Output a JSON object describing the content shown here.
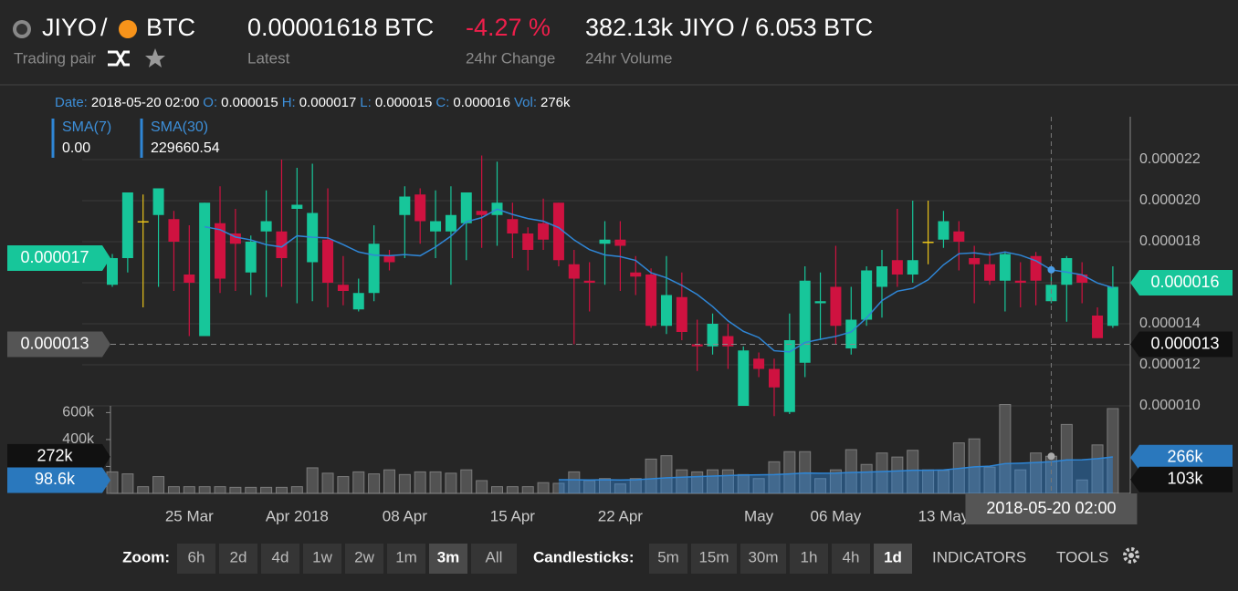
{
  "header": {
    "base": "JIYO",
    "sep": "/",
    "quote": "BTC",
    "pair_label": "Trading pair",
    "last": "0.00001618 BTC",
    "last_label": "Latest",
    "change": "-4.27 %",
    "change_label": "24hr Change",
    "volume": "382.13k JIYO / 6.053 BTC",
    "volume_label": "24hr Volume"
  },
  "info": [
    {
      "label": "Date:",
      "value": "2018-05-20 02:00"
    },
    {
      "label": "O:",
      "value": "0.000015"
    },
    {
      "label": "H:",
      "value": "0.000017"
    },
    {
      "label": "L:",
      "value": "0.000015"
    },
    {
      "label": "C:",
      "value": "0.000016"
    },
    {
      "label": "Vol:",
      "value": "276k"
    }
  ],
  "legend": [
    {
      "name": "SMA(7)",
      "value": "0.00"
    },
    {
      "name": "SMA(30)",
      "value": "229660.54"
    }
  ],
  "chart_data": {
    "type": "candlestick",
    "up_color": "#17c69a",
    "down_color": "#cf1240",
    "doji_color": "#e8c21a",
    "sma_color": "#2f86d6",
    "grid": true,
    "categories": [
      null,
      null,
      null,
      null,
      null,
      "25 Mar",
      null,
      null,
      null,
      null,
      null,
      null,
      "Apr 2018",
      null,
      null,
      null,
      null,
      null,
      null,
      "08 Apr",
      null,
      null,
      null,
      null,
      null,
      null,
      "15 Apr",
      null,
      null,
      null,
      null,
      null,
      null,
      "22 Apr",
      null,
      null,
      null,
      null,
      null,
      null,
      null,
      null,
      "May",
      null,
      null,
      null,
      null,
      "06 May",
      null,
      null,
      null,
      null,
      null,
      null,
      "13 May",
      null,
      null,
      null,
      null,
      null,
      null,
      null,
      null,
      null,
      null,
      null
    ],
    "open": [
      1.59e-05,
      1.72e-05,
      1.9e-05,
      1.93e-05,
      1.91e-05,
      1.64e-05,
      1.34e-05,
      1.89e-05,
      1.84e-05,
      1.65e-05,
      1.85e-05,
      1.85e-05,
      1.96e-05,
      1.7e-05,
      1.81e-05,
      1.59e-05,
      1.47e-05,
      1.55e-05,
      1.73e-05,
      1.93e-05,
      2.03e-05,
      1.85e-05,
      1.85e-05,
      1.89e-05,
      1.95e-05,
      1.93e-05,
      1.91e-05,
      1.84e-05,
      1.89e-05,
      1.99e-05,
      1.69e-05,
      1.61e-05,
      1.79e-05,
      1.81e-05,
      1.65e-05,
      1.64e-05,
      1.39e-05,
      1.53e-05,
      1.3e-05,
      1.29e-05,
      1.34e-05,
      1e-05,
      1.23e-05,
      1.18e-05,
      9.7e-06,
      1.21e-05,
      1.5e-05,
      1.58e-05,
      1.28e-05,
      1.42e-05,
      1.58e-05,
      1.71e-05,
      1.64e-05,
      1.8e-05,
      1.81e-05,
      1.85e-05,
      1.72e-05,
      1.69e-05,
      1.61e-05,
      1.61e-05,
      1.73e-05,
      1.51e-05,
      1.59e-05,
      1.64e-05,
      1.44e-05,
      1.39e-05
    ],
    "high": [
      1.74e-05,
      2.04e-05,
      2.03e-05,
      2.06e-05,
      1.95e-05,
      1.88e-05,
      1.99e-05,
      2.07e-05,
      1.96e-05,
      1.83e-05,
      2.05e-05,
      2.2e-05,
      2.16e-05,
      2.18e-05,
      2.06e-05,
      1.73e-05,
      1.62e-05,
      1.88e-05,
      1.76e-05,
      2.07e-05,
      2.06e-05,
      2.05e-05,
      2.07e-05,
      2.04e-05,
      2.22e-05,
      2.19e-05,
      1.99e-05,
      1.87e-05,
      2.01e-05,
      1.99e-05,
      1.76e-05,
      1.7e-05,
      1.9e-05,
      1.9e-05,
      1.73e-05,
      1.67e-05,
      1.73e-05,
      1.65e-05,
      1.42e-05,
      1.45e-05,
      1.4e-05,
      1.29e-05,
      1.26e-05,
      1.23e-05,
      1.45e-05,
      1.68e-05,
      1.65e-05,
      1.78e-05,
      1.58e-05,
      1.68e-05,
      1.76e-05,
      1.96e-05,
      2e-05,
      2e-05,
      1.95e-05,
      1.9e-05,
      1.78e-05,
      1.75e-05,
      1.75e-05,
      1.7e-05,
      1.75e-05,
      1.68e-05,
      1.73e-05,
      1.7e-05,
      1.48e-05,
      1.68e-05
    ],
    "low": [
      1.58e-05,
      1.65e-05,
      1.48e-05,
      1.58e-05,
      1.56e-05,
      1.34e-05,
      1.34e-05,
      1.55e-05,
      1.56e-05,
      1.54e-05,
      1.53e-05,
      1.58e-05,
      1.5e-05,
      1.51e-05,
      1.48e-05,
      1.49e-05,
      1.46e-05,
      1.51e-05,
      1.66e-05,
      1.72e-05,
      1.79e-05,
      1.72e-05,
      1.59e-05,
      1.71e-05,
      1.77e-05,
      1.78e-05,
      1.72e-05,
      1.66e-05,
      1.76e-05,
      1.68e-05,
      1.3e-05,
      1.46e-05,
      1.59e-05,
      1.56e-05,
      1.54e-05,
      1.38e-05,
      1.35e-05,
      1.32e-05,
      1.17e-05,
      1.25e-05,
      1.18e-05,
      1e-05,
      1.14e-05,
      9.5e-06,
      9.6e-06,
      1.14e-05,
      1.32e-05,
      1.3e-05,
      1.25e-05,
      1.39e-05,
      1.43e-05,
      1.58e-05,
      1.6e-05,
      1.69e-05,
      1.77e-05,
      1.66e-05,
      1.5e-05,
      1.59e-05,
      1.46e-05,
      1.48e-05,
      1.49e-05,
      1.5e-05,
      1.41e-05,
      1.5e-05,
      1.33e-05,
      1.38e-05
    ],
    "close": [
      1.72e-05,
      2.04e-05,
      1.9e-05,
      2.06e-05,
      1.8e-05,
      1.6e-05,
      1.99e-05,
      1.62e-05,
      1.79e-05,
      1.8e-05,
      1.9e-05,
      1.72e-05,
      1.98e-05,
      1.94e-05,
      1.6e-05,
      1.56e-05,
      1.55e-05,
      1.79e-05,
      1.7e-05,
      2.02e-05,
      1.9e-05,
      1.9e-05,
      1.93e-05,
      2.04e-05,
      1.93e-05,
      1.99e-05,
      1.84e-05,
      1.76e-05,
      1.81e-05,
      1.71e-05,
      1.62e-05,
      1.6e-05,
      1.81e-05,
      1.78e-05,
      1.63e-05,
      1.39e-05,
      1.54e-05,
      1.36e-05,
      1.29e-05,
      1.4e-05,
      1.29e-05,
      1.27e-05,
      1.18e-05,
      1.09e-05,
      1.32e-05,
      1.61e-05,
      1.51e-05,
      1.39e-05,
      1.42e-05,
      1.66e-05,
      1.68e-05,
      1.64e-05,
      1.71e-05,
      1.8e-05,
      1.9e-05,
      1.8e-05,
      1.69e-05,
      1.61e-05,
      1.74e-05,
      1.6e-05,
      1.61e-05,
      1.59e-05,
      1.72e-05,
      1.6e-05,
      1.33e-05,
      1.58e-05
    ],
    "volume": [
      160000,
      145000,
      50000,
      125000,
      50000,
      50000,
      50000,
      50000,
      45000,
      45000,
      45000,
      45000,
      50000,
      190000,
      150000,
      125000,
      160000,
      145000,
      175000,
      140000,
      160000,
      160000,
      150000,
      175000,
      95000,
      50000,
      50000,
      50000,
      80000,
      75000,
      160000,
      95000,
      110000,
      70000,
      110000,
      255000,
      280000,
      175000,
      160000,
      175000,
      175000,
      140000,
      110000,
      235000,
      310000,
      310000,
      110000,
      175000,
      325000,
      215000,
      300000,
      270000,
      320000,
      175000,
      170000,
      375000,
      405000,
      195000,
      660000,
      175000,
      300000,
      276000,
      512000,
      100000,
      360000,
      630000
    ],
    "ylim": [
      6e-06,
      2.4e-05
    ],
    "yticks": [
      {
        "value": 1e-05,
        "label": "0.000010"
      },
      {
        "value": 1.2e-05,
        "label": "0.000012"
      },
      {
        "value": 1.4e-05,
        "label": "0.000014"
      },
      {
        "value": 1.6e-05,
        "label": "0.000016"
      },
      {
        "value": 1.8e-05,
        "label": "0.000018"
      },
      {
        "value": 2e-05,
        "label": "0.000020"
      },
      {
        "value": 2.2e-05,
        "label": "0.000022"
      }
    ],
    "y2lim": [
      0,
      650000
    ],
    "y2ticks": [
      {
        "value": 200000,
        "label": "200k"
      },
      {
        "value": 400000,
        "label": "400k"
      },
      {
        "value": 600000,
        "label": "600k"
      }
    ],
    "price_tags": [
      {
        "side": "left",
        "value": 1.72e-05,
        "label": "0.000017",
        "color": "#17c69a"
      },
      {
        "side": "left",
        "value": 1.3e-05,
        "label": "0.000013",
        "color": "#555555"
      },
      {
        "side": "right",
        "value": 1.6e-05,
        "label": "0.000016",
        "color": "#17c69a"
      },
      {
        "side": "right",
        "value": 1.3e-05,
        "label": "0.000013",
        "color": "#111111"
      }
    ],
    "volume_tags": [
      {
        "side": "left",
        "value": 272000,
        "label": "272k",
        "color": "#111111"
      },
      {
        "side": "left",
        "value": 98600,
        "label": "98.6k",
        "color": "#2a78bd"
      },
      {
        "side": "right",
        "value": 266000,
        "label": "266k",
        "color": "#2a78bd"
      },
      {
        "side": "right",
        "value": 103000,
        "label": "103k",
        "color": "#111111"
      }
    ],
    "crosshair": {
      "label": "2018-05-20 02:00"
    }
  },
  "toolbar": {
    "zoom_label": "Zoom:",
    "zoom": [
      "6h",
      "2d",
      "4d",
      "1w",
      "2w",
      "1m",
      "3m",
      "All"
    ],
    "zoom_active": "3m",
    "candle_label": "Candlesticks:",
    "candles": [
      "5m",
      "15m",
      "30m",
      "1h",
      "4h",
      "1d"
    ],
    "candle_active": "1d",
    "indicators": "INDICATORS",
    "tools": "TOOLS"
  }
}
